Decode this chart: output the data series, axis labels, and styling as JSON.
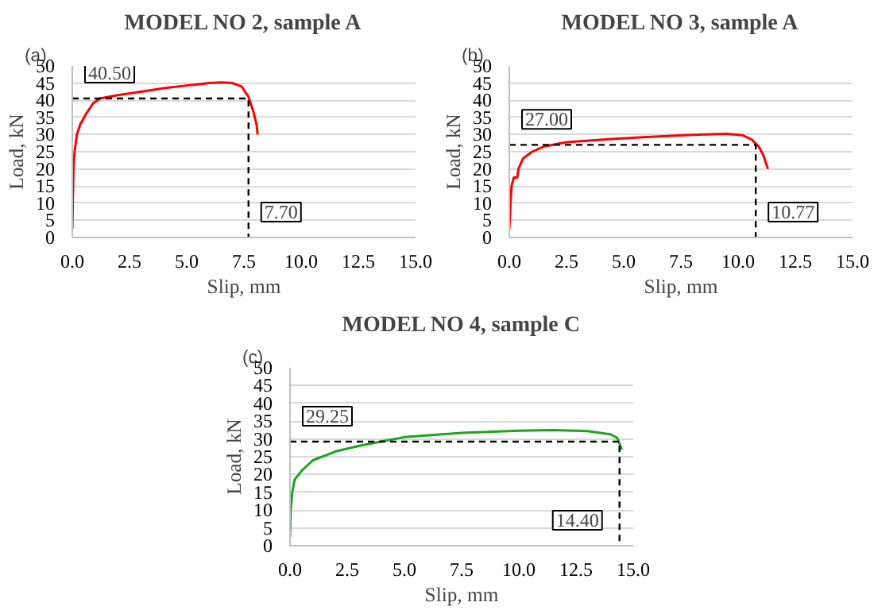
{
  "chart_data": [
    {
      "type": "line",
      "title": "MODEL NO 2, sample A",
      "xlabel": "Slip, mm",
      "ylabel": "Load, kN",
      "grid": "y",
      "xlim": [
        0,
        15
      ],
      "ylim": [
        0,
        50
      ],
      "xticks": [
        {
          "value": 0,
          "label": "0.0"
        },
        {
          "value": 2.5,
          "label": "2.5"
        },
        {
          "value": 5,
          "label": "5.0"
        },
        {
          "value": 7.5,
          "label": "7.5"
        },
        {
          "value": 10,
          "label": "10.0"
        },
        {
          "value": 12.5,
          "label": "12.5"
        },
        {
          "value": 15,
          "label": "15.0"
        }
      ],
      "yticks": [
        0,
        5,
        10,
        15,
        20,
        25,
        30,
        35,
        40,
        45,
        50
      ],
      "series": [
        {
          "color": "#ff0000",
          "x": [
            0,
            0.02,
            0.05,
            0.1,
            0.2,
            0.35,
            0.6,
            0.9,
            1.2,
            2,
            3,
            4,
            5,
            6,
            6.5,
            7,
            7.4,
            7.7,
            7.9,
            8.05,
            8.1
          ],
          "values": [
            2.5,
            10,
            20,
            25,
            30,
            33,
            36,
            39,
            40.5,
            41.5,
            42.5,
            43.5,
            44.3,
            45,
            45.2,
            45,
            44,
            41,
            37,
            33,
            30
          ]
        },
        {
          "type": "line",
          "color": "#000000",
          "line_style": "dashed",
          "x": [
            0,
            7.7,
            7.7
          ],
          "values": [
            40.5,
            40.5,
            0
          ]
        }
      ],
      "annotations": [
        "(a)",
        {
          "text": "40.50",
          "x": 0,
          "y": 40.5
        },
        {
          "text": "7.70",
          "x": 7.7,
          "y": 0
        }
      ]
    },
    {
      "type": "line",
      "title": "MODEL NO 3, sample A",
      "xlabel": "Slip, mm",
      "ylabel": "Load, kN",
      "grid": "y",
      "xlim": [
        0,
        15
      ],
      "ylim": [
        0,
        50
      ],
      "xticks": [
        {
          "value": 0,
          "label": "0.0"
        },
        {
          "value": 2.5,
          "label": "2.5"
        },
        {
          "value": 5,
          "label": "5.0"
        },
        {
          "value": 7.5,
          "label": "7.5"
        },
        {
          "value": 10,
          "label": "10.0"
        },
        {
          "value": 12.5,
          "label": "12.5"
        },
        {
          "value": 15,
          "label": "15.0"
        }
      ],
      "yticks": [
        0,
        5,
        10,
        15,
        20,
        25,
        30,
        35,
        40,
        45,
        50
      ],
      "series": [
        {
          "color": "#ff0000",
          "x": [
            0,
            0.05,
            0.1,
            0.2,
            0.35,
            0.4,
            0.6,
            1,
            1.5,
            2.5,
            4,
            6,
            8,
            9.5,
            10.2,
            10.6,
            10.9,
            11.1,
            11.3
          ],
          "values": [
            2.5,
            10,
            15,
            17.5,
            17.5,
            20,
            23,
            25,
            26.5,
            27.8,
            28.5,
            29.3,
            29.9,
            30.2,
            29.8,
            28.5,
            26.5,
            24,
            20
          ]
        },
        {
          "type": "line",
          "color": "#000000",
          "line_style": "dashed",
          "x": [
            0,
            10.77,
            10.77
          ],
          "values": [
            27,
            27,
            0
          ]
        }
      ],
      "annotations": [
        "(b)",
        {
          "text": "27.00",
          "x": 0,
          "y": 27
        },
        {
          "text": "10.77",
          "x": 10.77,
          "y": 0
        }
      ]
    },
    {
      "type": "line",
      "title": "MODEL NO 4, sample C",
      "xlabel": "Slip, mm",
      "ylabel": "Load, kN",
      "grid": "y",
      "xlim": [
        0,
        15
      ],
      "ylim": [
        0,
        50
      ],
      "xticks": [
        {
          "value": 0,
          "label": "0.0"
        },
        {
          "value": 2.5,
          "label": "2.5"
        },
        {
          "value": 5,
          "label": "5.0"
        },
        {
          "value": 7.5,
          "label": "7.5"
        },
        {
          "value": 10,
          "label": "10.0"
        },
        {
          "value": 12.5,
          "label": "12.5"
        },
        {
          "value": 15,
          "label": "15.0"
        }
      ],
      "yticks": [
        0,
        5,
        10,
        15,
        20,
        25,
        30,
        35,
        40,
        45,
        50
      ],
      "series": [
        {
          "color": "#1aa51a",
          "x": [
            0,
            0.03,
            0.1,
            0.2,
            0.5,
            1,
            2,
            3,
            4,
            5,
            7.5,
            10,
            11.5,
            13,
            14,
            14.3,
            14.5
          ],
          "values": [
            2.5,
            10,
            15,
            18.5,
            21,
            24,
            26.5,
            28,
            29.3,
            30.5,
            31.7,
            32.3,
            32.5,
            32.2,
            31.3,
            30.3,
            27
          ]
        },
        {
          "type": "line",
          "color": "#000000",
          "line_style": "dashed",
          "x": [
            0,
            14.4,
            14.4
          ],
          "values": [
            29.25,
            29.25,
            0
          ]
        }
      ],
      "annotations": [
        "(c)",
        {
          "text": "29.25",
          "x": 0,
          "y": 29.25
        },
        {
          "text": "14.40",
          "x": 14.4,
          "y": 0
        }
      ]
    }
  ]
}
